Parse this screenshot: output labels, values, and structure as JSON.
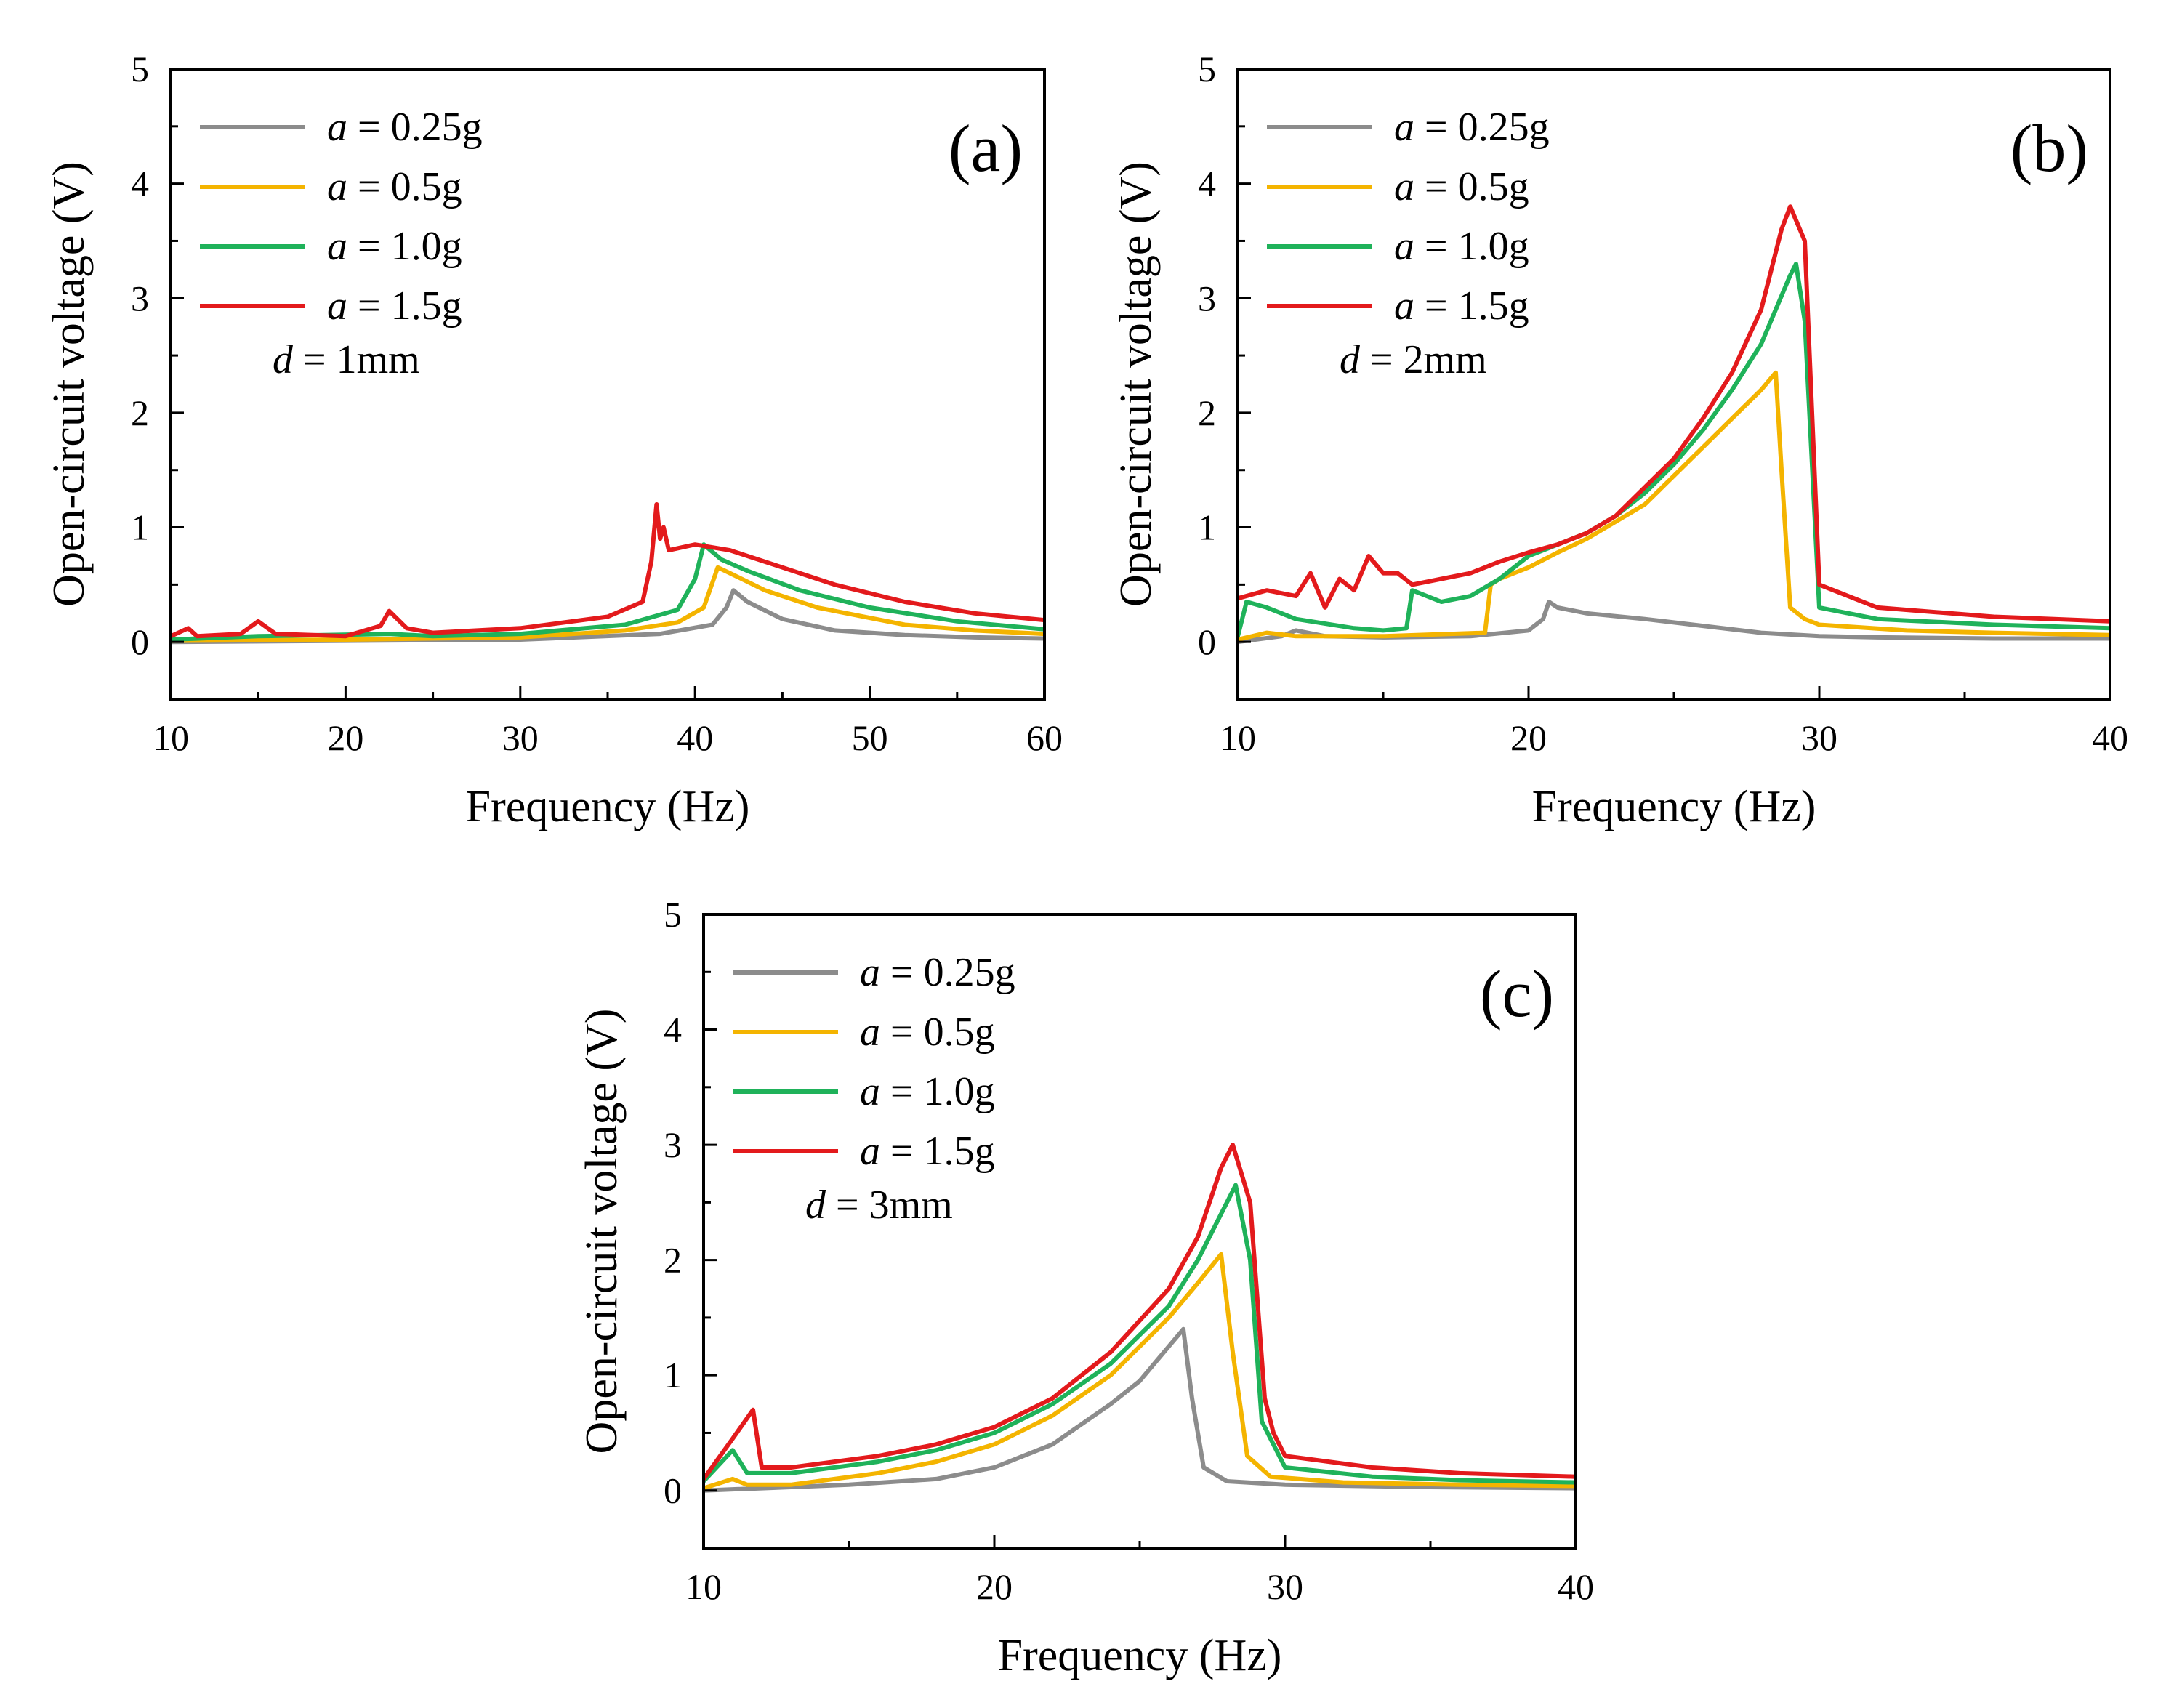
{
  "colors": {
    "a_0_25g": "#8c8c8c",
    "a_0_5g": "#f4b400",
    "a_1_0g": "#1fb25a",
    "a_1_5g": "#e31a1c"
  },
  "chart_data": [
    {
      "type": "line",
      "panel_tag": "(a)",
      "annotation": {
        "symbol": "d",
        "text": " = 1mm"
      },
      "xlabel": "Frequency (Hz)",
      "ylabel": "Open-circuit voltage (V)",
      "xlim": [
        10,
        60
      ],
      "ylim": [
        -0.5,
        5
      ],
      "xticks": [
        10,
        20,
        30,
        40,
        50,
        60
      ],
      "yticks": [
        0,
        1,
        2,
        3,
        4,
        5
      ],
      "legend_position": "top-left",
      "series": [
        {
          "name": "a = 0.25g",
          "legend_symbol": "a",
          "legend_text": " = 0.25g",
          "color": "#8c8c8c",
          "points": [
            [
              10,
              0.0
            ],
            [
              20,
              0.01
            ],
            [
              30,
              0.02
            ],
            [
              38,
              0.07
            ],
            [
              41,
              0.15
            ],
            [
              41.8,
              0.3
            ],
            [
              42.2,
              0.45
            ],
            [
              43,
              0.35
            ],
            [
              45,
              0.2
            ],
            [
              48,
              0.1
            ],
            [
              52,
              0.06
            ],
            [
              56,
              0.04
            ],
            [
              60,
              0.03
            ]
          ]
        },
        {
          "name": "a = 0.5g",
          "legend_symbol": "a",
          "legend_text": " = 0.5g",
          "color": "#f4b400",
          "points": [
            [
              10,
              0.01
            ],
            [
              20,
              0.02
            ],
            [
              30,
              0.04
            ],
            [
              36,
              0.1
            ],
            [
              39,
              0.17
            ],
            [
              40.5,
              0.3
            ],
            [
              41.3,
              0.65
            ],
            [
              42,
              0.6
            ],
            [
              44,
              0.45
            ],
            [
              47,
              0.3
            ],
            [
              52,
              0.15
            ],
            [
              56,
              0.1
            ],
            [
              60,
              0.07
            ]
          ]
        },
        {
          "name": "a = 1.0g",
          "legend_symbol": "a",
          "legend_text": " = 1.0g",
          "color": "#1fb25a",
          "points": [
            [
              10,
              0.02
            ],
            [
              15,
              0.05
            ],
            [
              22.5,
              0.07
            ],
            [
              25,
              0.05
            ],
            [
              30,
              0.07
            ],
            [
              36,
              0.15
            ],
            [
              39,
              0.28
            ],
            [
              40,
              0.55
            ],
            [
              40.5,
              0.85
            ],
            [
              41.5,
              0.72
            ],
            [
              43,
              0.62
            ],
            [
              46,
              0.45
            ],
            [
              50,
              0.3
            ],
            [
              55,
              0.18
            ],
            [
              60,
              0.11
            ]
          ]
        },
        {
          "name": "a = 1.5g",
          "legend_symbol": "a",
          "legend_text": " = 1.5g",
          "color": "#e31a1c",
          "points": [
            [
              10,
              0.05
            ],
            [
              11,
              0.12
            ],
            [
              11.5,
              0.05
            ],
            [
              14,
              0.07
            ],
            [
              15,
              0.18
            ],
            [
              16,
              0.07
            ],
            [
              20,
              0.05
            ],
            [
              22,
              0.14
            ],
            [
              22.5,
              0.27
            ],
            [
              23.5,
              0.12
            ],
            [
              25,
              0.08
            ],
            [
              30,
              0.12
            ],
            [
              35,
              0.22
            ],
            [
              37,
              0.35
            ],
            [
              37.5,
              0.7
            ],
            [
              37.8,
              1.2
            ],
            [
              38,
              0.9
            ],
            [
              38.2,
              1.0
            ],
            [
              38.5,
              0.8
            ],
            [
              40,
              0.85
            ],
            [
              42,
              0.8
            ],
            [
              45,
              0.65
            ],
            [
              48,
              0.5
            ],
            [
              52,
              0.35
            ],
            [
              56,
              0.25
            ],
            [
              60,
              0.19
            ]
          ]
        }
      ]
    },
    {
      "type": "line",
      "panel_tag": "(b)",
      "annotation": {
        "symbol": "d",
        "text": " = 2mm"
      },
      "xlabel": "Frequency (Hz)",
      "ylabel": "Open-circuit voltage (V)",
      "xlim": [
        10,
        40
      ],
      "ylim": [
        -0.5,
        5
      ],
      "xticks": [
        10,
        20,
        30,
        40
      ],
      "yticks": [
        0,
        1,
        2,
        3,
        4,
        5
      ],
      "legend_position": "top-left",
      "series": [
        {
          "name": "a = 0.25g",
          "legend_symbol": "a",
          "legend_text": " = 0.25g",
          "color": "#8c8c8c",
          "points": [
            [
              10,
              0.0
            ],
            [
              11.5,
              0.05
            ],
            [
              12,
              0.1
            ],
            [
              13,
              0.05
            ],
            [
              15,
              0.04
            ],
            [
              18,
              0.05
            ],
            [
              20,
              0.1
            ],
            [
              20.5,
              0.2
            ],
            [
              20.7,
              0.35
            ],
            [
              21,
              0.3
            ],
            [
              22,
              0.25
            ],
            [
              24,
              0.2
            ],
            [
              26,
              0.14
            ],
            [
              28,
              0.08
            ],
            [
              30,
              0.05
            ],
            [
              32,
              0.04
            ],
            [
              36,
              0.03
            ],
            [
              40,
              0.03
            ]
          ]
        },
        {
          "name": "a = 0.5g",
          "legend_symbol": "a",
          "legend_text": " = 0.5g",
          "color": "#f4b400",
          "points": [
            [
              10,
              0.02
            ],
            [
              11,
              0.08
            ],
            [
              12,
              0.05
            ],
            [
              15,
              0.05
            ],
            [
              18.5,
              0.08
            ],
            [
              18.7,
              0.5
            ],
            [
              19,
              0.55
            ],
            [
              20,
              0.65
            ],
            [
              21,
              0.78
            ],
            [
              22,
              0.9
            ],
            [
              23,
              1.05
            ],
            [
              24,
              1.2
            ],
            [
              25,
              1.45
            ],
            [
              26,
              1.7
            ],
            [
              27,
              1.95
            ],
            [
              28,
              2.2
            ],
            [
              28.5,
              2.35
            ],
            [
              28.7,
              1.5
            ],
            [
              29,
              0.3
            ],
            [
              29.5,
              0.2
            ],
            [
              30,
              0.15
            ],
            [
              33,
              0.1
            ],
            [
              36,
              0.08
            ],
            [
              40,
              0.06
            ]
          ]
        },
        {
          "name": "a = 1.0g",
          "legend_symbol": "a",
          "legend_text": " = 1.0g",
          "color": "#1fb25a",
          "points": [
            [
              10,
              0.05
            ],
            [
              10.3,
              0.35
            ],
            [
              11,
              0.3
            ],
            [
              12,
              0.2
            ],
            [
              14,
              0.12
            ],
            [
              15,
              0.1
            ],
            [
              15.8,
              0.12
            ],
            [
              16,
              0.45
            ],
            [
              17,
              0.35
            ],
            [
              18,
              0.4
            ],
            [
              19,
              0.55
            ],
            [
              20,
              0.75
            ],
            [
              21,
              0.85
            ],
            [
              22,
              0.95
            ],
            [
              23,
              1.1
            ],
            [
              24,
              1.3
            ],
            [
              25,
              1.55
            ],
            [
              26,
              1.85
            ],
            [
              27,
              2.2
            ],
            [
              28,
              2.6
            ],
            [
              29,
              3.2
            ],
            [
              29.2,
              3.3
            ],
            [
              29.5,
              2.8
            ],
            [
              30,
              0.3
            ],
            [
              32,
              0.2
            ],
            [
              36,
              0.15
            ],
            [
              40,
              0.12
            ]
          ]
        },
        {
          "name": "a = 1.5g",
          "legend_symbol": "a",
          "legend_text": " = 1.5g",
          "color": "#e31a1c",
          "points": [
            [
              10,
              0.38
            ],
            [
              11,
              0.45
            ],
            [
              12,
              0.4
            ],
            [
              12.5,
              0.6
            ],
            [
              13,
              0.3
            ],
            [
              13.5,
              0.55
            ],
            [
              14,
              0.45
            ],
            [
              14.5,
              0.75
            ],
            [
              15,
              0.6
            ],
            [
              15.5,
              0.6
            ],
            [
              16,
              0.5
            ],
            [
              17,
              0.55
            ],
            [
              18,
              0.6
            ],
            [
              19,
              0.7
            ],
            [
              20,
              0.78
            ],
            [
              21,
              0.85
            ],
            [
              22,
              0.95
            ],
            [
              23,
              1.1
            ],
            [
              24,
              1.35
            ],
            [
              25,
              1.6
            ],
            [
              26,
              1.95
            ],
            [
              27,
              2.35
            ],
            [
              28,
              2.9
            ],
            [
              28.7,
              3.6
            ],
            [
              29,
              3.8
            ],
            [
              29.5,
              3.5
            ],
            [
              30,
              0.5
            ],
            [
              32,
              0.3
            ],
            [
              36,
              0.22
            ],
            [
              40,
              0.18
            ]
          ]
        }
      ]
    },
    {
      "type": "line",
      "panel_tag": "(c)",
      "annotation": {
        "symbol": "d",
        "text": " = 3mm"
      },
      "xlabel": "Frequency (Hz)",
      "ylabel": "Open-circuit voltage (V)",
      "xlim": [
        10,
        40
      ],
      "ylim": [
        -0.5,
        5
      ],
      "xticks": [
        10,
        20,
        30,
        40
      ],
      "yticks": [
        0,
        1,
        2,
        3,
        4,
        5
      ],
      "legend_position": "top-left",
      "series": [
        {
          "name": "a = 0.25g",
          "legend_symbol": "a",
          "legend_text": " = 0.25g",
          "color": "#8c8c8c",
          "points": [
            [
              10,
              0.0
            ],
            [
              12,
              0.02
            ],
            [
              15,
              0.05
            ],
            [
              18,
              0.1
            ],
            [
              20,
              0.2
            ],
            [
              22,
              0.4
            ],
            [
              24,
              0.75
            ],
            [
              25,
              0.95
            ],
            [
              26,
              1.25
            ],
            [
              26.5,
              1.4
            ],
            [
              26.8,
              0.8
            ],
            [
              27.2,
              0.2
            ],
            [
              28,
              0.08
            ],
            [
              30,
              0.05
            ],
            [
              35,
              0.03
            ],
            [
              40,
              0.02
            ]
          ]
        },
        {
          "name": "a = 0.5g",
          "legend_symbol": "a",
          "legend_text": " = 0.5g",
          "color": "#f4b400",
          "points": [
            [
              10,
              0.02
            ],
            [
              11,
              0.1
            ],
            [
              11.5,
              0.05
            ],
            [
              13,
              0.05
            ],
            [
              16,
              0.15
            ],
            [
              18,
              0.25
            ],
            [
              20,
              0.4
            ],
            [
              22,
              0.65
            ],
            [
              24,
              1.0
            ],
            [
              26,
              1.5
            ],
            [
              27,
              1.8
            ],
            [
              27.8,
              2.05
            ],
            [
              28.2,
              1.2
            ],
            [
              28.7,
              0.3
            ],
            [
              29.5,
              0.12
            ],
            [
              32,
              0.07
            ],
            [
              36,
              0.05
            ],
            [
              40,
              0.04
            ]
          ]
        },
        {
          "name": "a = 1.0g",
          "legend_symbol": "a",
          "legend_text": " = 1.0g",
          "color": "#1fb25a",
          "points": [
            [
              10,
              0.08
            ],
            [
              11,
              0.35
            ],
            [
              11.5,
              0.15
            ],
            [
              13,
              0.15
            ],
            [
              16,
              0.25
            ],
            [
              18,
              0.35
            ],
            [
              20,
              0.5
            ],
            [
              22,
              0.75
            ],
            [
              24,
              1.1
            ],
            [
              26,
              1.6
            ],
            [
              27,
              2.0
            ],
            [
              28,
              2.5
            ],
            [
              28.3,
              2.65
            ],
            [
              28.8,
              2.0
            ],
            [
              29.2,
              0.6
            ],
            [
              30,
              0.2
            ],
            [
              33,
              0.12
            ],
            [
              36,
              0.09
            ],
            [
              40,
              0.07
            ]
          ]
        },
        {
          "name": "a = 1.5g",
          "legend_symbol": "a",
          "legend_text": " = 1.5g",
          "color": "#e31a1c",
          "points": [
            [
              10,
              0.1
            ],
            [
              11,
              0.45
            ],
            [
              11.7,
              0.7
            ],
            [
              12,
              0.2
            ],
            [
              13,
              0.2
            ],
            [
              16,
              0.3
            ],
            [
              18,
              0.4
            ],
            [
              20,
              0.55
            ],
            [
              22,
              0.8
            ],
            [
              24,
              1.2
            ],
            [
              26,
              1.75
            ],
            [
              27,
              2.2
            ],
            [
              27.8,
              2.8
            ],
            [
              28.2,
              3.0
            ],
            [
              28.8,
              2.5
            ],
            [
              29.3,
              0.8
            ],
            [
              29.6,
              0.5
            ],
            [
              30,
              0.3
            ],
            [
              33,
              0.2
            ],
            [
              36,
              0.15
            ],
            [
              40,
              0.12
            ]
          ]
        }
      ]
    }
  ]
}
